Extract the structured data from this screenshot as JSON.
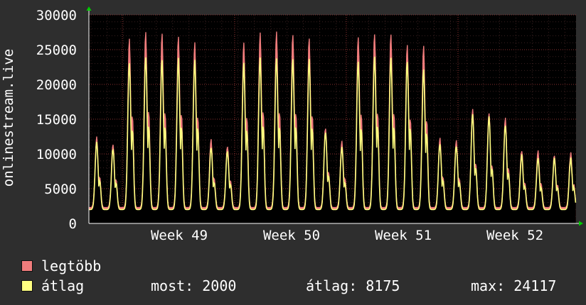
{
  "chart_data": {
    "type": "line",
    "ylabel": "onlinestream.live",
    "ylim": [
      0,
      30000
    ],
    "y_ticks": [
      "0",
      "5000",
      "10000",
      "15000",
      "20000",
      "25000",
      "30000"
    ],
    "x_tick_labels": [
      "Week 49",
      "Week 50",
      "Week 51",
      "Week 52"
    ],
    "grid": true,
    "series": [
      {
        "name": "legtöbb",
        "color": "#f07c7c",
        "daily_peaks": [
          12400,
          11500,
          26600,
          27700,
          27300,
          27200,
          26100,
          12000,
          11300,
          26100,
          27500,
          27600,
          27400,
          26900,
          13900,
          12000,
          27000,
          27500,
          27400,
          26000,
          25500,
          12200,
          12000,
          16700,
          16100,
          15200,
          10600,
          10300,
          9800,
          10100
        ]
      },
      {
        "name": "átlag",
        "color": "#ffff80",
        "daily_peaks": [
          11600,
          10800,
          23300,
          24000,
          23700,
          23700,
          23500,
          11100,
          10500,
          23100,
          23900,
          23900,
          23800,
          23600,
          13300,
          11000,
          23300,
          24100,
          23900,
          23500,
          22200,
          11600,
          11200,
          15900,
          15500,
          14300,
          9900,
          9500,
          9400,
          9400
        ]
      }
    ]
  },
  "legend": {
    "max_label": "legtöbb",
    "avg_label": "átlag"
  },
  "stats": {
    "now": "most: 2000",
    "avg": "átlag: 8175",
    "max": "max: 24117"
  }
}
